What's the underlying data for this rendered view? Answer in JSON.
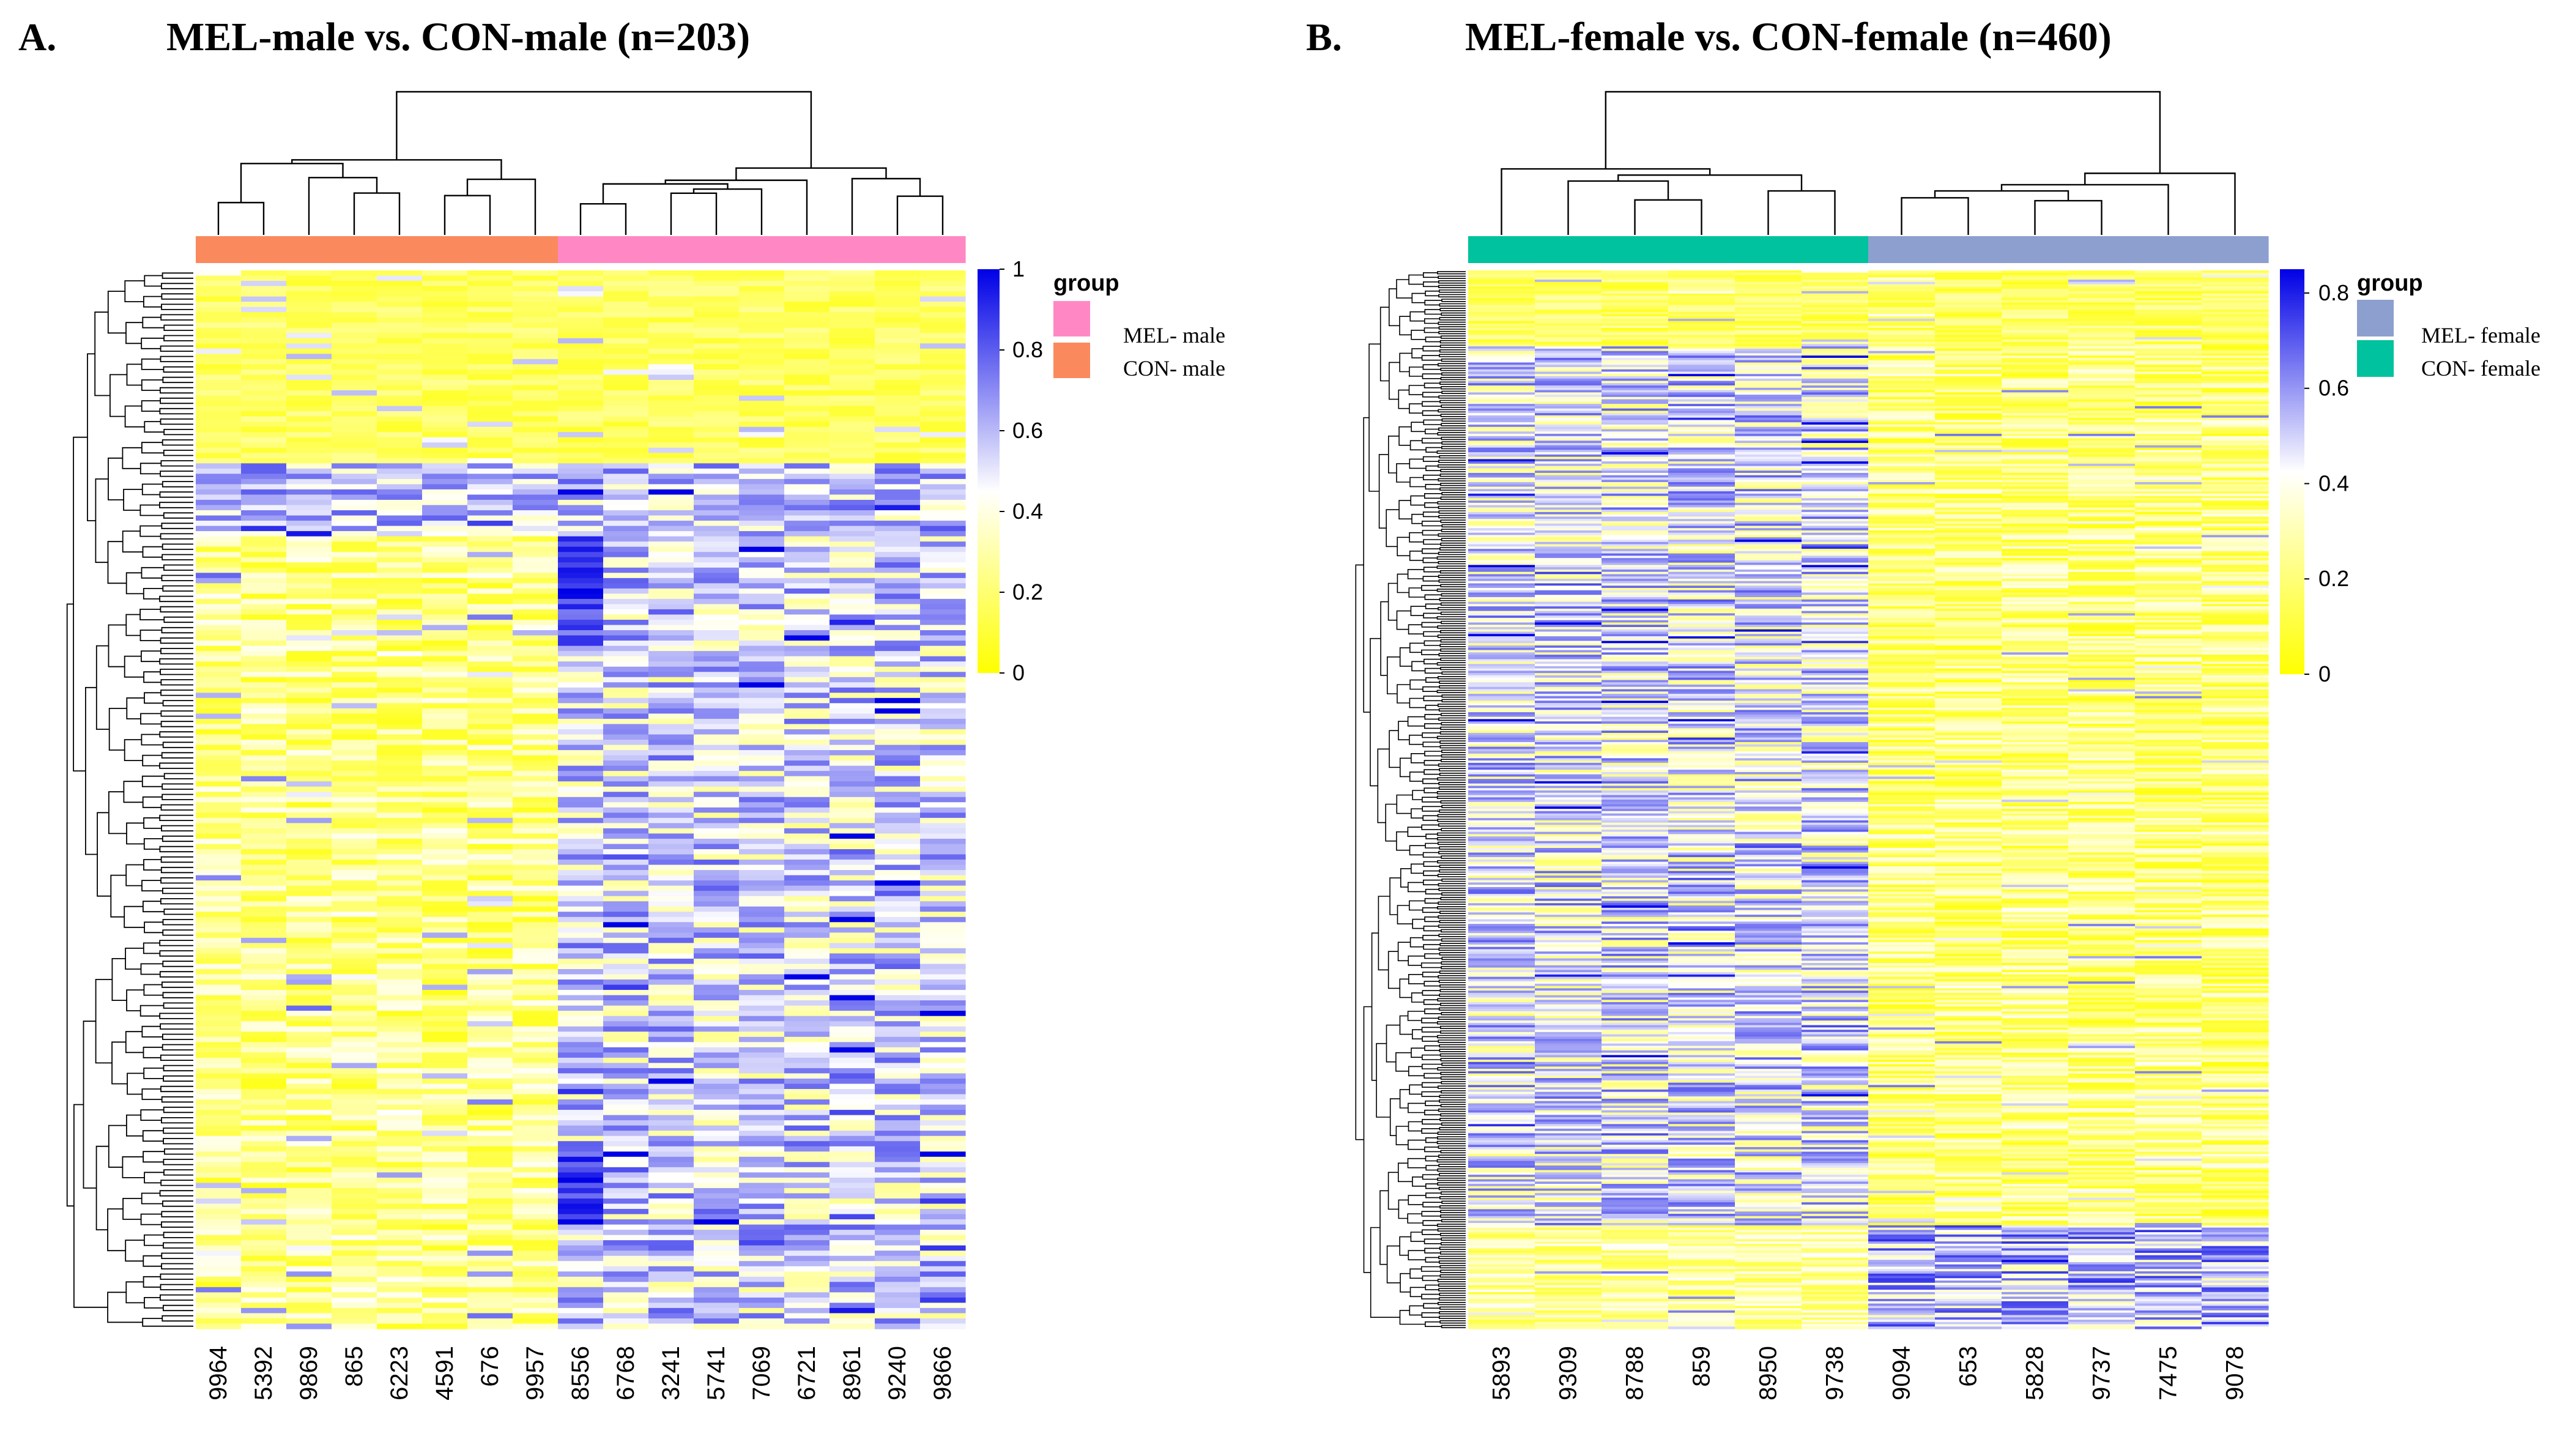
{
  "chart_data": [
    {
      "type": "heatmap",
      "panel_label": "A.",
      "title": "MEL-male vs. CON-male (n=203)",
      "n_rows": 203,
      "samples": [
        "9964",
        "5392",
        "9869",
        "865",
        "6223",
        "4591",
        "676",
        "9957",
        "8556",
        "6768",
        "3241",
        "5741",
        "7069",
        "6721",
        "8961",
        "9240",
        "9866"
      ],
      "sample_groups": [
        "CON- male",
        "CON- male",
        "CON- male",
        "CON- male",
        "CON- male",
        "CON- male",
        "CON- male",
        "CON- male",
        "MEL- male",
        "MEL- male",
        "MEL- male",
        "MEL- male",
        "MEL- male",
        "MEL- male",
        "MEL- male",
        "MEL- male",
        "MEL- male"
      ],
      "legend": {
        "title": "group",
        "items": [
          {
            "label": "MEL- male",
            "color": "#ff88c4"
          },
          {
            "label": "CON- male",
            "color": "#fa8a5e"
          }
        ]
      },
      "color_scale": {
        "low": "#ffff00",
        "mid": "#ffffff",
        "high": "#0000e6",
        "min": 0,
        "max": 1,
        "ticks": [
          "1",
          "0.8",
          "0.6",
          "0.4",
          "0.2",
          "0"
        ]
      },
      "pattern": "CON samples predominantly low (yellow); MEL samples mixed with higher values (white/blue); top block of rows low in all samples"
    },
    {
      "type": "heatmap",
      "panel_label": "B.",
      "title": "MEL-female vs. CON-female (n=460)",
      "n_rows": 460,
      "samples": [
        "5893",
        "9309",
        "8788",
        "859",
        "8950",
        "9738",
        "9094",
        "653",
        "5828",
        "9737",
        "7475",
        "9078"
      ],
      "sample_groups": [
        "CON- female",
        "CON- female",
        "CON- female",
        "CON- female",
        "CON- female",
        "CON- female",
        "MEL- female",
        "MEL- female",
        "MEL- female",
        "MEL- female",
        "MEL- female",
        "MEL- female"
      ],
      "legend": {
        "title": "group",
        "items": [
          {
            "label": "MEL- female",
            "color": "#8c9fce"
          },
          {
            "label": "CON- female",
            "color": "#00c29e"
          }
        ]
      },
      "color_scale": {
        "low": "#ffff00",
        "mid": "#ffffff",
        "high": "#0000e6",
        "min": 0,
        "max": 0.85,
        "ticks": [
          "0.8",
          "0.6",
          "0.4",
          "0.2",
          "0"
        ]
      },
      "pattern": "CON samples mixed with higher values (white/blue); MEL samples predominantly low (yellow) except bottom rows"
    }
  ]
}
